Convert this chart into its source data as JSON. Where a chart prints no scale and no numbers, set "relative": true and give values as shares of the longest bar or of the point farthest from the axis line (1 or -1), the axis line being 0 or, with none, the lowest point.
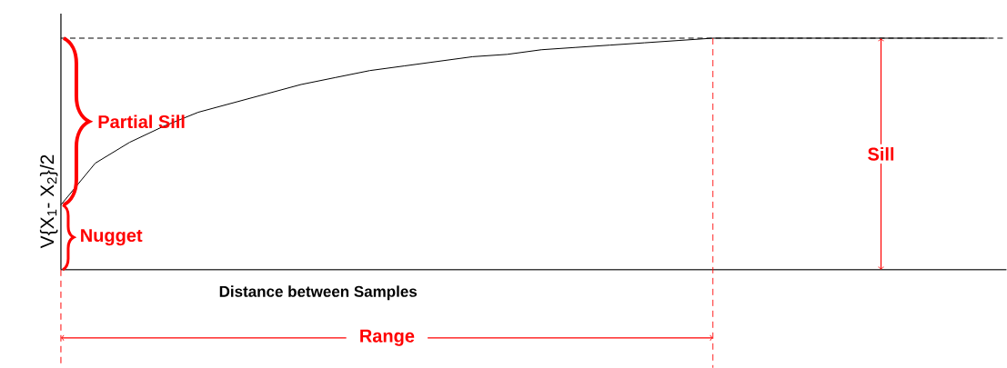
{
  "chart_data": {
    "type": "line",
    "relative": true,
    "xlabel": "Distance between Samples",
    "ylabel": "V{X$_{1}$- X$_{2}$}/2",
    "categories": [
      null,
      null,
      null,
      null,
      null,
      null,
      null,
      null,
      null,
      null,
      null,
      null,
      null,
      null,
      null,
      null,
      null,
      null,
      null,
      null,
      null,
      null,
      null,
      null,
      null,
      null,
      null,
      null
    ],
    "series": [
      {
        "color": "#000000",
        "values": [
          0.28,
          0.46,
          0.55,
          0.62,
          0.68,
          0.72,
          0.76,
          0.8,
          0.83,
          0.86,
          0.88,
          0.9,
          0.92,
          0.93,
          0.95,
          0.96,
          0.97,
          0.98,
          0.99,
          1,
          1,
          1,
          1,
          1,
          1,
          1,
          1,
          1
        ]
      }
    ],
    "marker": "none",
    "line_style": "solid",
    "ref_lines": [
      {
        "axis": "y",
        "value": 1,
        "color": "#000000",
        "line_style": "dashed"
      }
    ],
    "annotations": [
      "Partial Sill",
      "Nugget",
      "Sill",
      "Range"
    ]
  }
}
